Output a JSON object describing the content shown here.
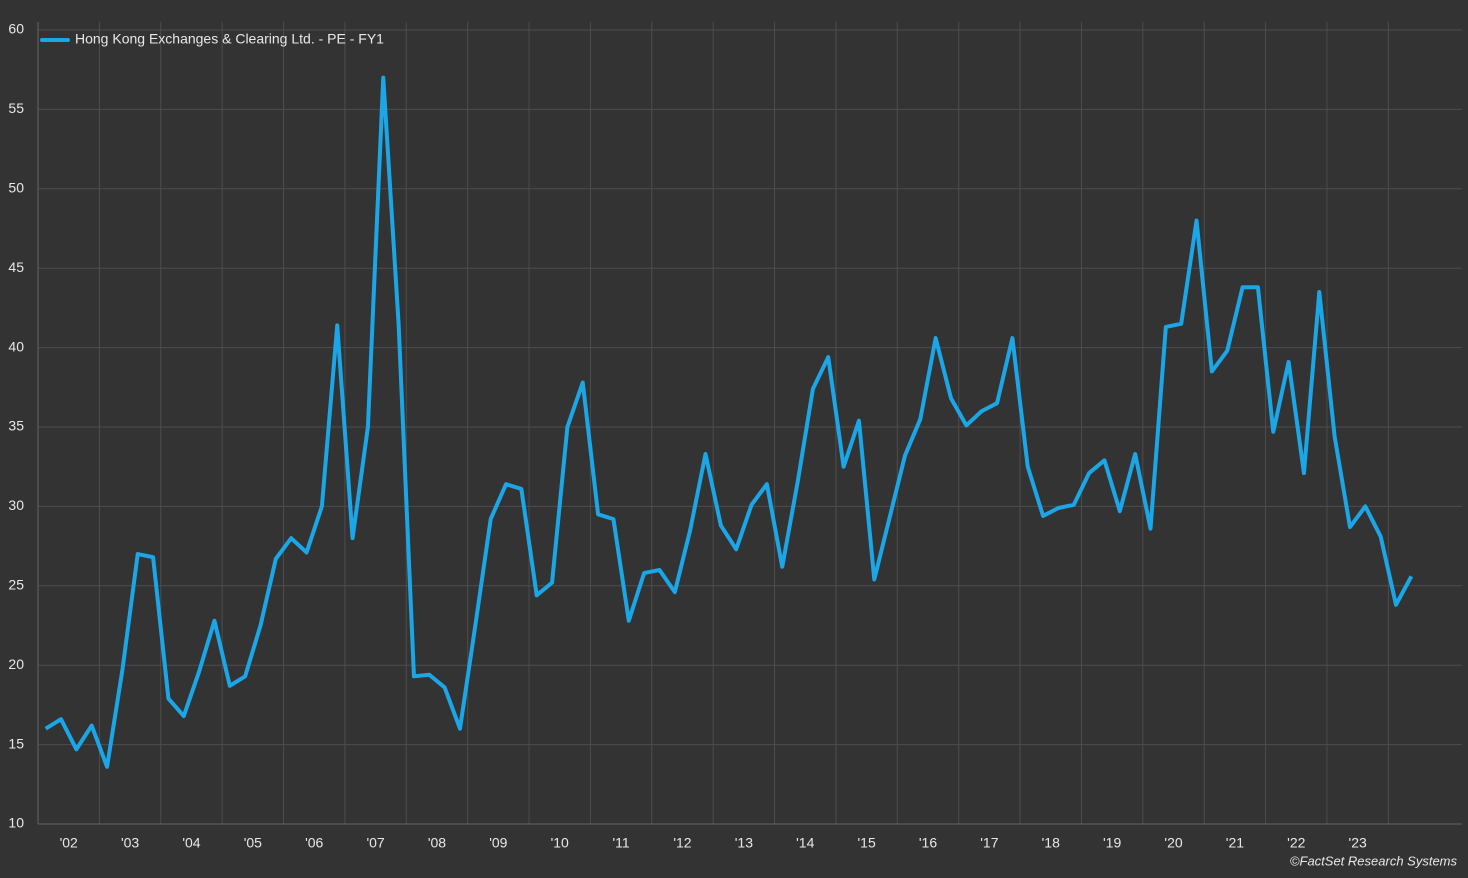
{
  "chart_data": {
    "type": "line",
    "credit": "©FactSet Research Systems",
    "legend": "top-left",
    "grid": true,
    "xlim": [
      2002,
      2025.2
    ],
    "ylim": [
      10,
      60
    ],
    "yticks": [
      10,
      15,
      20,
      25,
      30,
      35,
      40,
      45,
      50,
      55,
      60
    ],
    "xticks": [
      {
        "value": 2002.5,
        "label": "'02"
      },
      {
        "value": 2003.5,
        "label": "'03"
      },
      {
        "value": 2004.5,
        "label": "'04"
      },
      {
        "value": 2005.5,
        "label": "'05"
      },
      {
        "value": 2006.5,
        "label": "'06"
      },
      {
        "value": 2007.5,
        "label": "'07"
      },
      {
        "value": 2008.5,
        "label": "'08"
      },
      {
        "value": 2009.5,
        "label": "'09"
      },
      {
        "value": 2010.5,
        "label": "'10"
      },
      {
        "value": 2011.5,
        "label": "'11"
      },
      {
        "value": 2012.5,
        "label": "'12"
      },
      {
        "value": 2013.5,
        "label": "'13"
      },
      {
        "value": 2014.5,
        "label": "'14"
      },
      {
        "value": 2015.5,
        "label": "'15"
      },
      {
        "value": 2016.5,
        "label": "'16"
      },
      {
        "value": 2017.5,
        "label": "'17"
      },
      {
        "value": 2018.5,
        "label": "'18"
      },
      {
        "value": 2019.5,
        "label": "'19"
      },
      {
        "value": 2020.5,
        "label": "'20"
      },
      {
        "value": 2021.5,
        "label": "'21"
      },
      {
        "value": 2022.5,
        "label": "'22"
      },
      {
        "value": 2023.5,
        "label": "'23"
      }
    ],
    "x": [
      2002.125,
      2002.375,
      2002.625,
      2002.875,
      2003.125,
      2003.375,
      2003.625,
      2003.875,
      2004.125,
      2004.375,
      2004.625,
      2004.875,
      2005.125,
      2005.375,
      2005.625,
      2005.875,
      2006.125,
      2006.375,
      2006.625,
      2006.875,
      2007.125,
      2007.375,
      2007.625,
      2007.875,
      2008.125,
      2008.375,
      2008.625,
      2008.875,
      2009.125,
      2009.375,
      2009.625,
      2009.875,
      2010.125,
      2010.375,
      2010.625,
      2010.875,
      2011.125,
      2011.375,
      2011.625,
      2011.875,
      2012.125,
      2012.375,
      2012.625,
      2012.875,
      2013.125,
      2013.375,
      2013.625,
      2013.875,
      2014.125,
      2014.375,
      2014.625,
      2014.875,
      2015.125,
      2015.375,
      2015.625,
      2015.875,
      2016.125,
      2016.375,
      2016.625,
      2016.875,
      2017.125,
      2017.375,
      2017.625,
      2017.875,
      2018.125,
      2018.375,
      2018.625,
      2018.875,
      2019.125,
      2019.375,
      2019.625,
      2019.875,
      2020.125,
      2020.375,
      2020.625,
      2020.875,
      2021.125,
      2021.375,
      2021.625,
      2021.875,
      2022.125,
      2022.375,
      2022.625,
      2022.875,
      2023.125,
      2023.375,
      2023.625,
      2023.875,
      2024.125,
      2024.375
    ],
    "series": [
      {
        "name": "Hong Kong Exchanges & Clearing Ltd. - PE - FY1",
        "color": "#1ba6e8",
        "values": [
          16.0,
          16.6,
          14.7,
          16.2,
          13.6,
          19.7,
          27.0,
          26.8,
          17.9,
          16.8,
          19.6,
          22.8,
          18.7,
          19.3,
          22.5,
          26.7,
          28.0,
          27.1,
          30.0,
          41.4,
          28.0,
          35.0,
          57.0,
          41.5,
          19.3,
          19.4,
          18.6,
          16.0,
          22.5,
          29.2,
          31.4,
          31.1,
          24.4,
          25.2,
          35.0,
          37.8,
          29.5,
          29.2,
          22.8,
          25.8,
          26.0,
          24.6,
          28.5,
          33.3,
          28.8,
          27.3,
          30.1,
          31.4,
          26.2,
          31.5,
          37.4,
          39.4,
          32.5,
          35.4,
          25.4,
          29.3,
          33.2,
          35.5,
          40.6,
          36.8,
          35.1,
          36.0,
          36.5,
          40.6,
          32.5,
          29.4,
          29.9,
          30.1,
          32.1,
          32.9,
          29.7,
          33.3,
          28.6,
          41.3,
          41.5,
          48.0,
          38.5,
          39.8,
          43.8,
          43.8,
          34.7,
          39.1,
          32.1,
          43.5,
          34.4,
          28.7,
          30.0,
          28.1,
          23.8,
          25.6
        ]
      }
    ]
  }
}
